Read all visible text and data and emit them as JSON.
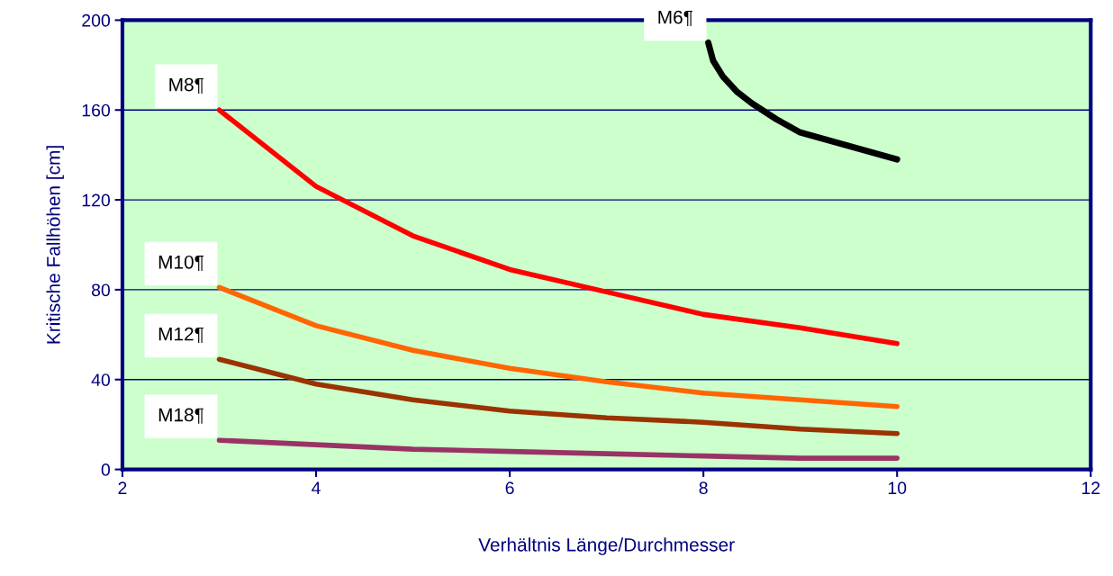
{
  "chart_data": {
    "type": "line",
    "xlabel": "Verhältnis Länge/Durchmesser",
    "ylabel": "Kritische Fallhöhen [cm]",
    "xlim": [
      2,
      12
    ],
    "xticks": [
      2,
      4,
      6,
      8,
      10,
      12
    ],
    "ylim": [
      0,
      200
    ],
    "yticks": [
      0,
      40,
      80,
      120,
      160,
      200
    ],
    "grid": "y",
    "legend": false,
    "marker": "none",
    "line_style": "solid",
    "series": [
      {
        "name": "M6¶",
        "color": "#000000",
        "x": [
          8.05,
          8.1,
          8.2,
          8.35,
          8.5,
          8.75,
          9,
          9.25,
          9.5,
          9.75,
          10
        ],
        "values": [
          190,
          182,
          175,
          168,
          163,
          156,
          150,
          147,
          144,
          141,
          138
        ]
      },
      {
        "name": "M8¶",
        "color": "#ff0000",
        "x": [
          3,
          4,
          5,
          6,
          7,
          8,
          9,
          10
        ],
        "values": [
          160,
          126,
          104,
          89,
          79,
          69,
          63,
          56
        ]
      },
      {
        "name": "M10¶",
        "color": "#ff6600",
        "x": [
          3,
          4,
          5,
          6,
          7,
          8,
          9,
          10
        ],
        "values": [
          81,
          64,
          53,
          45,
          39,
          34,
          31,
          28
        ]
      },
      {
        "name": "M12¶",
        "color": "#993300",
        "x": [
          3,
          4,
          5,
          6,
          7,
          8,
          9,
          10
        ],
        "values": [
          49,
          38,
          31,
          26,
          23,
          21,
          18,
          16
        ]
      },
      {
        "name": "M18¶",
        "color": "#993366",
        "x": [
          3,
          4,
          5,
          6,
          7,
          8,
          9,
          10
        ],
        "values": [
          13,
          11,
          9,
          8,
          7,
          6,
          5,
          5
        ]
      }
    ]
  }
}
